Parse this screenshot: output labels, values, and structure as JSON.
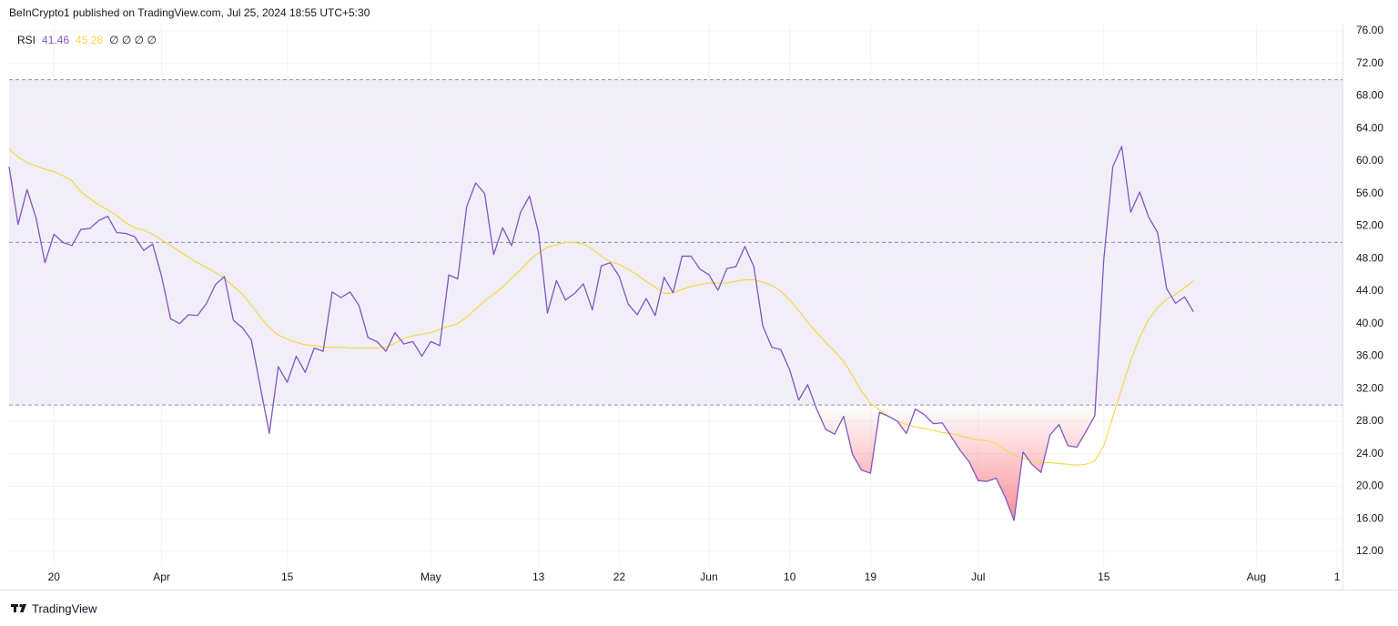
{
  "header": "BeInCrypto1 published on TradingView.com, Jul 25, 2024 18:55 UTC+5:30",
  "footer": "TradingView",
  "chart_data": {
    "type": "line",
    "legend_extra": "∅ ∅ ∅ ∅",
    "categories": [
      null,
      null,
      null,
      null,
      null,
      "20",
      null,
      null,
      null,
      null,
      null,
      null,
      null,
      null,
      null,
      null,
      null,
      "Apr",
      null,
      null,
      null,
      null,
      null,
      null,
      null,
      null,
      null,
      null,
      null,
      null,
      null,
      "15",
      null,
      null,
      null,
      null,
      null,
      null,
      null,
      null,
      null,
      null,
      null,
      null,
      null,
      null,
      null,
      "May",
      null,
      null,
      null,
      null,
      null,
      null,
      null,
      null,
      null,
      null,
      null,
      "13",
      null,
      null,
      null,
      null,
      null,
      null,
      null,
      null,
      "22",
      null,
      null,
      null,
      null,
      null,
      null,
      null,
      null,
      null,
      "Jun",
      null,
      null,
      null,
      null,
      null,
      null,
      null,
      null,
      "10",
      null,
      null,
      null,
      null,
      null,
      null,
      null,
      null,
      "19",
      null,
      null,
      null,
      null,
      null,
      null,
      null,
      null,
      null,
      null,
      null,
      "Jul",
      null,
      null,
      null,
      null,
      null,
      null,
      null,
      null,
      null,
      null,
      null,
      null,
      null,
      "15",
      null,
      null,
      null,
      null,
      null,
      null,
      null,
      null,
      null,
      null,
      null,
      null,
      null,
      null,
      null,
      null,
      "Aug",
      null,
      null,
      null,
      null,
      null,
      null,
      null,
      null,
      "1"
    ],
    "series": [
      {
        "name": "RSI",
        "color": "#7e57c2",
        "values": [
          59.3,
          52.2,
          56.5,
          53,
          47.5,
          51,
          50,
          49.6,
          51.6,
          51.7,
          52.7,
          53.2,
          51.2,
          51.1,
          50.7,
          49,
          49.8,
          45.8,
          40.6,
          40,
          41.1,
          41,
          42.5,
          44.8,
          45.8,
          40.4,
          39.5,
          38,
          32.2,
          26.5,
          34.7,
          32.8,
          36,
          34,
          37,
          36.6,
          43.9,
          43.2,
          43.9,
          42.2,
          38.3,
          37.8,
          36.6,
          38.9,
          37.5,
          37.8,
          36,
          37.8,
          37.3,
          46,
          45.5,
          54.4,
          57.3,
          56,
          48.5,
          51.8,
          49.6,
          53.7,
          55.7,
          51.2,
          41.3,
          45.3,
          42.9,
          43.7,
          44.9,
          41.7,
          47.1,
          47.5,
          45.8,
          42.4,
          41.1,
          43.1,
          41,
          45.7,
          43.8,
          48.3,
          48.3,
          46.7,
          46,
          44.1,
          46.8,
          47,
          49.5,
          47,
          39.7,
          37.1,
          36.8,
          34.3,
          30.6,
          32.5,
          29.5,
          27,
          26.4,
          28.6,
          23.9,
          22,
          21.6,
          29.1,
          28.6,
          28,
          26.5,
          29.5,
          28.8,
          27.7,
          27.8,
          26.1,
          24.4,
          23,
          20.7,
          20.6,
          21,
          18.7,
          15.8,
          24.2,
          22.7,
          21.7,
          26.3,
          27.6,
          25,
          24.8,
          26.7,
          28.7,
          47.9,
          59.3,
          61.8,
          53.7,
          56.2,
          53.1,
          51.2,
          44.3,
          42.5,
          43.3,
          41.46,
          null,
          null,
          null,
          null,
          null,
          null,
          null,
          null,
          null,
          null,
          null,
          null,
          null,
          null,
          null,
          null
        ]
      },
      {
        "color": "#f5d84a",
        "values": [
          61.5,
          60.5,
          59.8,
          59.4,
          59,
          58.7,
          58.2,
          57.6,
          56.2,
          55.4,
          54.6,
          54,
          53.3,
          52.4,
          51.8,
          51.5,
          51,
          50.3,
          49.6,
          48.9,
          48.2,
          47.5,
          46.9,
          46.3,
          45.6,
          44.6,
          43.6,
          42.3,
          40.8,
          39.5,
          38.6,
          38.1,
          37.7,
          37.4,
          37.3,
          37.1,
          37.1,
          37.1,
          37,
          37,
          37,
          37,
          37.1,
          37.6,
          38.2,
          38.5,
          38.7,
          38.9,
          39.3,
          39.7,
          40,
          40.8,
          41.8,
          42.8,
          43.6,
          44.5,
          45.6,
          46.6,
          47.8,
          48.7,
          49.4,
          49.7,
          50,
          50,
          49.8,
          49.2,
          48.3,
          47.6,
          47.3,
          46.7,
          46,
          45.2,
          44.5,
          43.7,
          43.8,
          44.2,
          44.6,
          44.8,
          45,
          45,
          45,
          45.2,
          45.4,
          45.4,
          45.1,
          44.7,
          44,
          42.9,
          41.6,
          40.2,
          38.9,
          37.7,
          36.6,
          35.4,
          33.6,
          31.7,
          30.2,
          29.4,
          28.6,
          28,
          27.6,
          27.3,
          27.1,
          26.9,
          26.6,
          26.5,
          26.2,
          25.9,
          25.7,
          25.6,
          25.3,
          24.5,
          23.8,
          23.5,
          23.1,
          22.9,
          22.9,
          22.8,
          22.7,
          22.6,
          22.7,
          23.1,
          25,
          28.5,
          32,
          35.5,
          38.3,
          40.5,
          42,
          43,
          43.6,
          44.4,
          45.28,
          null,
          null,
          null,
          null,
          null,
          null,
          null,
          null,
          null,
          null,
          null,
          null,
          null,
          null,
          null,
          null
        ]
      }
    ],
    "ylim": [
      10.2,
      76.9
    ],
    "yticks": [
      {
        "value": 12,
        "label": "12.00"
      },
      {
        "value": 16,
        "label": "16.00"
      },
      {
        "value": 20,
        "label": "20.00"
      },
      {
        "value": 24,
        "label": "24.00"
      },
      {
        "value": 28,
        "label": "28.00"
      },
      {
        "value": 32,
        "label": "32.00"
      },
      {
        "value": 36,
        "label": "36.00"
      },
      {
        "value": 40,
        "label": "40.00"
      },
      {
        "value": 44,
        "label": "44.00"
      },
      {
        "value": 48,
        "label": "48.00"
      },
      {
        "value": 52,
        "label": "52.00"
      },
      {
        "value": 56,
        "label": "56.00"
      },
      {
        "value": 60,
        "label": "60.00"
      },
      {
        "value": 64,
        "label": "64.00"
      },
      {
        "value": 68,
        "label": "68.00"
      },
      {
        "value": 72,
        "label": "72.00"
      },
      {
        "value": 76,
        "label": "76.00"
      }
    ],
    "bands": {
      "upper": 70,
      "middle": 50,
      "lower": 30
    },
    "band_fill": "#7e57c2",
    "oversold_fill": "#f23645",
    "grid": true
  }
}
